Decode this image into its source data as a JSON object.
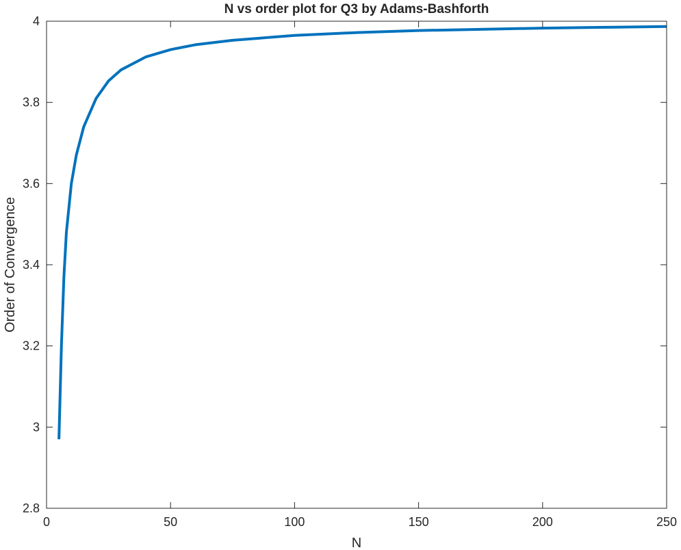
{
  "chart_data": {
    "type": "line",
    "title": "N vs order plot for Q3 by Adams-Bashforth",
    "xlabel": "N",
    "ylabel": "Order of Convergence",
    "xlim": [
      0,
      250
    ],
    "ylim": [
      2.8,
      4
    ],
    "xticks": [
      0,
      50,
      100,
      150,
      200,
      250
    ],
    "yticks": [
      2.8,
      3,
      3.2,
      3.4,
      3.6,
      3.8,
      4
    ],
    "xtick_labels": [
      "0",
      "50",
      "100",
      "150",
      "200",
      "250"
    ],
    "ytick_labels": [
      "2.8",
      "3",
      "3.2",
      "3.4",
      "3.6",
      "3.8",
      "4"
    ],
    "grid": false,
    "box": true,
    "series": [
      {
        "color": "#0072bd",
        "x": [
          5,
          6,
          7,
          8,
          10,
          12,
          15,
          20,
          25,
          30,
          40,
          50,
          60,
          75,
          100,
          125,
          150,
          175,
          200,
          225,
          250
        ],
        "y": [
          2.97,
          3.2,
          3.37,
          3.48,
          3.6,
          3.67,
          3.74,
          3.81,
          3.853,
          3.88,
          3.912,
          3.93,
          3.942,
          3.953,
          3.965,
          3.972,
          3.977,
          3.98,
          3.983,
          3.985,
          3.987
        ]
      }
    ]
  }
}
